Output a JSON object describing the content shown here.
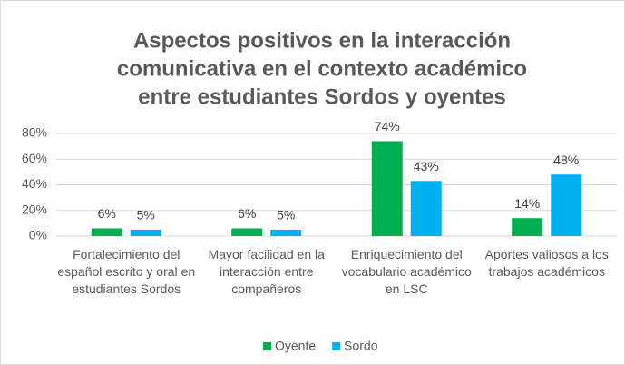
{
  "chart_data": {
    "type": "bar",
    "title": [
      "Aspectos positivos en la  interacción",
      "comunicativa en el contexto académico",
      "entre estudiantes Sordos y oyentes"
    ],
    "categories": [
      "Fortalecimiento del español escrito y oral en estudiantes Sordos",
      "Mayor facilidad en la interacción entre compañeros",
      "Enriquecimiento del vocabulario académico en LSC",
      "Aportes valiosos a los trabajos académicos"
    ],
    "series": [
      {
        "name": "Oyente",
        "color": "#00b050",
        "values": [
          6,
          6,
          74,
          14
        ],
        "value_labels": [
          "6%",
          "6%",
          "74%",
          "14%"
        ]
      },
      {
        "name": "Sordo",
        "color": "#00b0f0",
        "values": [
          5,
          5,
          43,
          48
        ],
        "value_labels": [
          "5%",
          "5%",
          "43%",
          "48%"
        ]
      }
    ],
    "ylim": [
      0,
      80
    ],
    "yticks": [
      {
        "value": 0,
        "label": "0%"
      },
      {
        "value": 20,
        "label": "20%"
      },
      {
        "value": 40,
        "label": "40%"
      },
      {
        "value": 60,
        "label": "60%"
      },
      {
        "value": 80,
        "label": "80%"
      }
    ],
    "grid": true,
    "legend": "bottom"
  }
}
